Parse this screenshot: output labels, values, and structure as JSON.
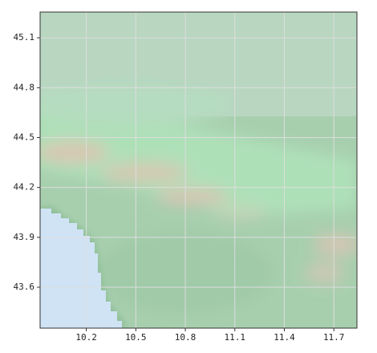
{
  "map": {
    "xlim": [
      9.92,
      11.84
    ],
    "ylim": [
      43.354,
      45.255
    ],
    "xticks": [
      10.2,
      10.5,
      10.8,
      11.1,
      11.4,
      11.7
    ],
    "yticks": [
      43.6,
      43.9,
      44.2,
      44.5,
      44.8,
      45.1
    ],
    "grid": true
  }
}
